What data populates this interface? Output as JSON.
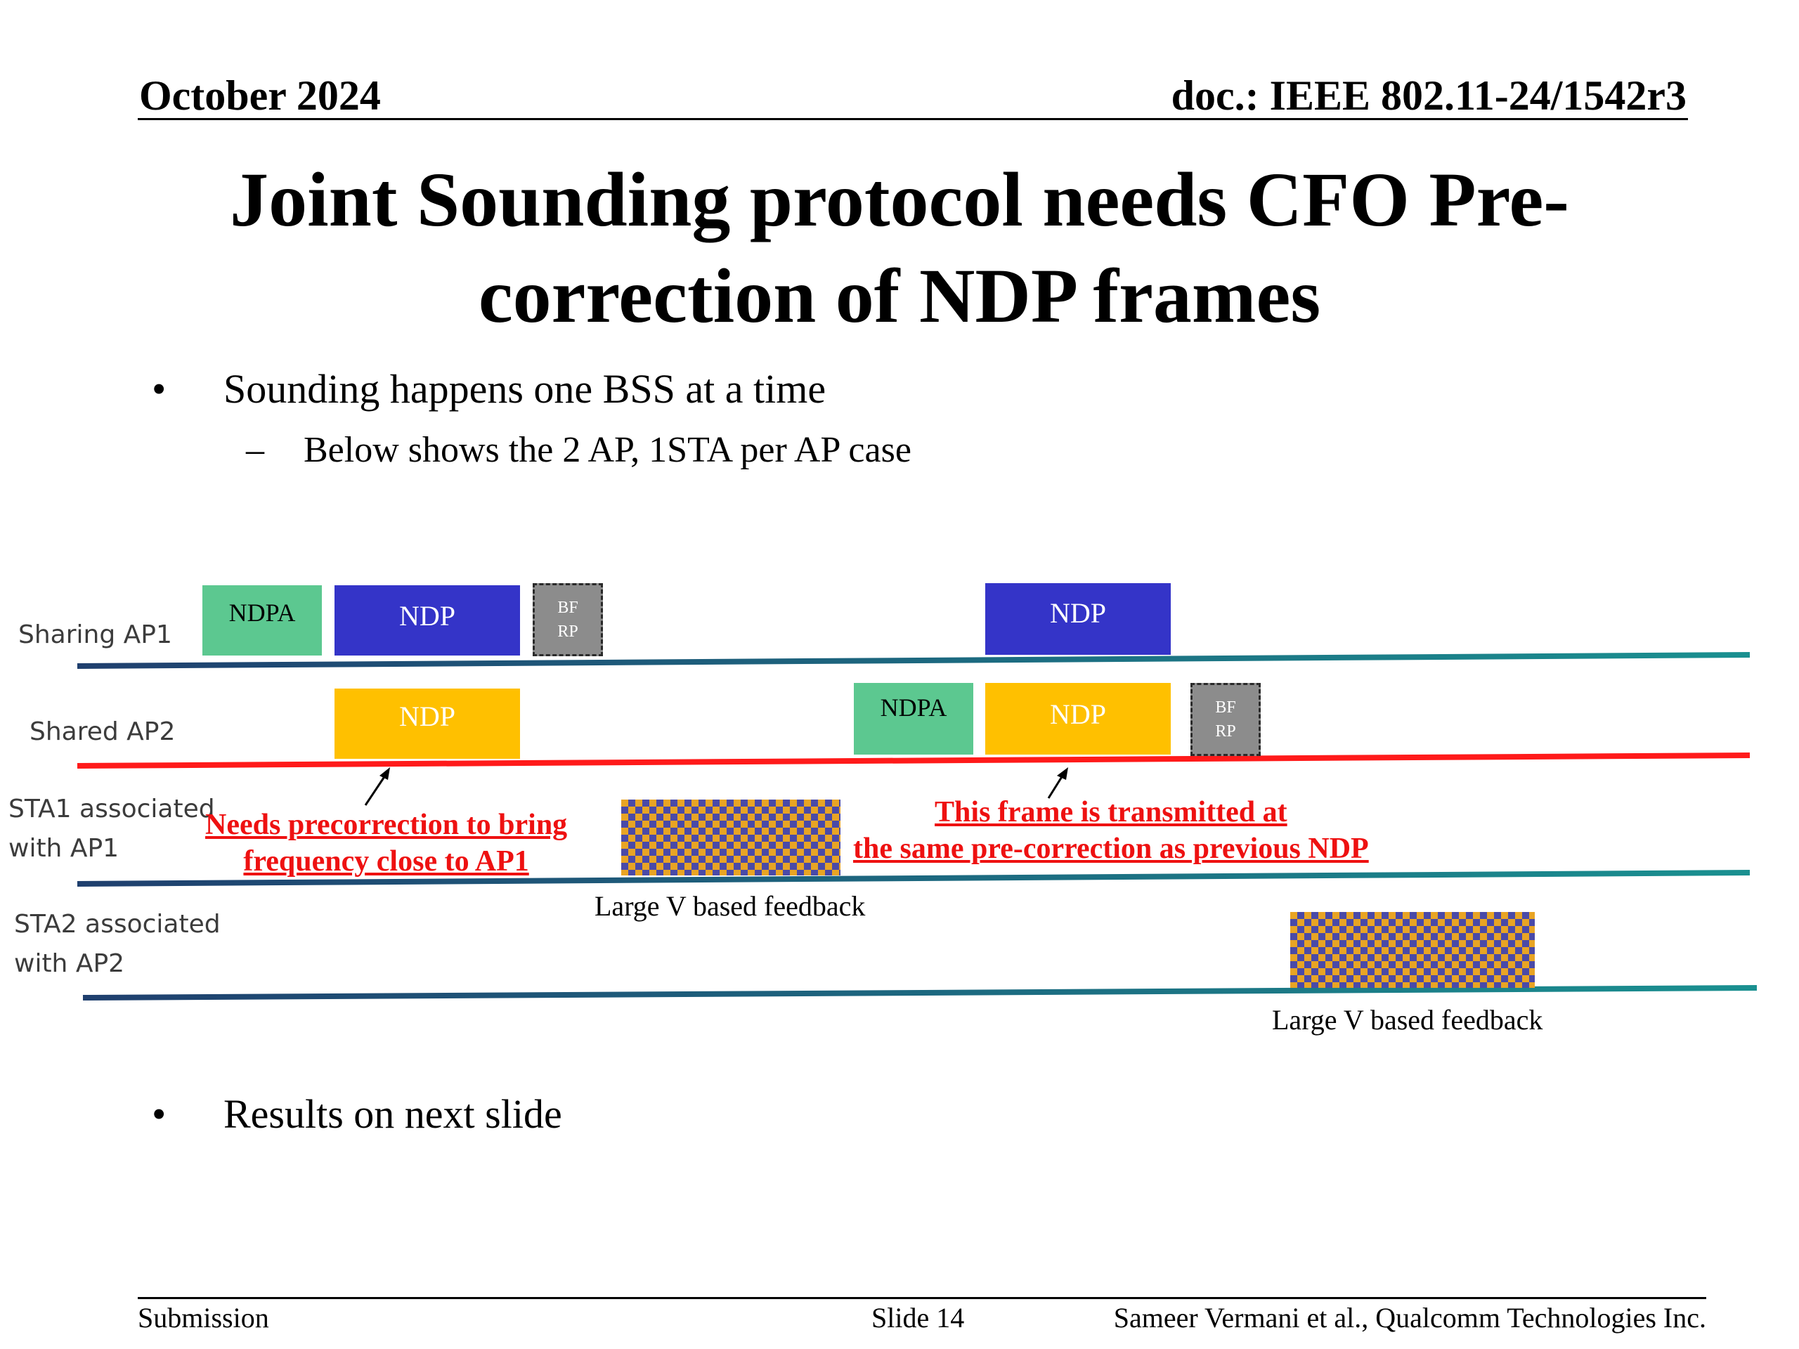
{
  "header": {
    "date": "October 2024",
    "doc": "doc.: IEEE 802.11-24/1542r3"
  },
  "title": {
    "line1": "Joint Sounding protocol needs CFO Pre-",
    "line2": "correction of NDP frames"
  },
  "bullets": {
    "b1": "Sounding happens one BSS at a time",
    "b1_sub": "Below shows the 2 AP, 1STA per AP case",
    "b2": "Results on next slide",
    "bullet_char": "•",
    "dash_char": "–"
  },
  "lanes": {
    "ap1": "Sharing AP1",
    "ap2": "Shared AP2",
    "sta1_l1": "STA1 associated",
    "sta1_l2": "with AP1",
    "sta2_l1": "STA2 associated",
    "sta2_l2": "with AP2"
  },
  "frames": {
    "ndpa": "NDPA",
    "ndp": "NDP",
    "bfrp_l1": "BF",
    "bfrp_l2": "RP"
  },
  "notes": {
    "n1_l1": "Needs precorrection to bring ",
    "n1_l2": "frequency close to AP1",
    "n2_l1": "This frame is transmitted at ",
    "n2_l2": "the same pre-correction as previous NDP"
  },
  "feedback": {
    "label1": "Large V based feedback",
    "label2": "Large V based feedback"
  },
  "footer": {
    "left": "Submission",
    "center": "Slide 14",
    "right": "Sameer Vermani et al., Qualcomm Technologies Inc."
  },
  "colors": {
    "ndp_blue": "#3434c8",
    "ndp_yellow": "#ffc000",
    "ndpa_green": "#5cc890",
    "bfrp_gray": "#8c8c8c",
    "note_red": "#ee1111",
    "ap2_line": "#ff1a1a"
  }
}
